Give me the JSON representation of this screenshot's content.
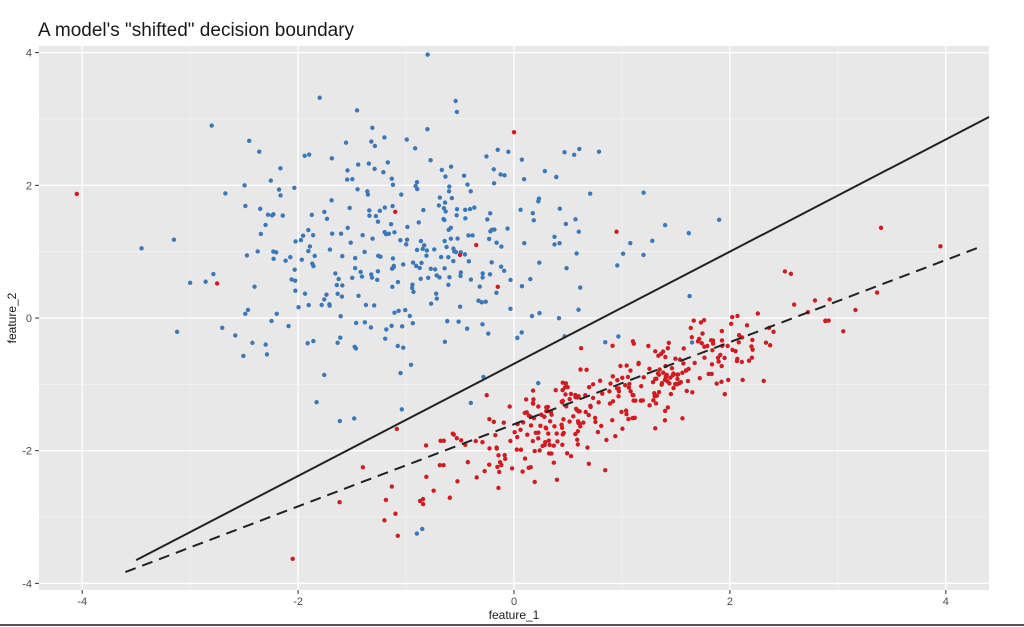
{
  "chart_data": {
    "type": "scatter",
    "title": "A model's \"shifted\" decision boundary",
    "xlabel": "feature_1",
    "ylabel": "feature_2",
    "xlim": [
      -4.4,
      4.4
    ],
    "ylim": [
      -4.1,
      4.1
    ],
    "x_ticks": [
      -4,
      -2,
      0,
      2,
      4
    ],
    "y_ticks": [
      -4,
      -2,
      0,
      2,
      4
    ],
    "x_tick_labels": [
      "-4",
      "-2",
      "0",
      "2",
      "4"
    ],
    "y_tick_labels": [
      "-4",
      "-2",
      "0",
      "2",
      "4"
    ],
    "grid": true,
    "legend": "none",
    "colors": {
      "panel": "#e8e8e8",
      "grid_major": "#ffffff",
      "grid_minor": "#f2f2f2",
      "blue": "#3a78b8",
      "red": "#d01c20",
      "line": "#222222"
    },
    "lines": [
      {
        "style": "solid",
        "x": [
          -3.5,
          4.4
        ],
        "y": [
          -3.65,
          3.03
        ]
      },
      {
        "style": "dashed",
        "x": [
          -3.6,
          4.3
        ],
        "y": [
          -3.83,
          1.06
        ]
      }
    ],
    "clusters": [
      {
        "color": "blue",
        "n": 330,
        "center": [
          -1.0,
          1.0
        ],
        "sd": [
          0.85,
          0.9
        ],
        "seed": 7
      },
      {
        "color": "red",
        "n": 340,
        "center": [
          0.9,
          -1.2
        ],
        "along": [
          0.8,
          0.6
        ],
        "sd_along": 1.05,
        "sd_across": 0.28,
        "seed": 11
      }
    ],
    "extra_points": {
      "blue": [
        [
          -3.45,
          1.05
        ],
        [
          -3.15,
          1.18
        ],
        [
          -0.8,
          3.97
        ],
        [
          -1.8,
          3.32
        ],
        [
          1.9,
          1.48
        ],
        [
          1.4,
          1.4
        ],
        [
          -0.4,
          -1.28
        ],
        [
          -0.85,
          -3.18
        ],
        [
          -0.9,
          -3.25
        ],
        [
          -2.8,
          2.9
        ],
        [
          -3.0,
          0.53
        ],
        [
          -2.3,
          -0.4
        ],
        [
          1.2,
          0.95
        ],
        [
          0.6,
          1.3
        ]
      ],
      "red": [
        [
          -4.05,
          1.87
        ],
        [
          -2.75,
          0.52
        ],
        [
          -2.05,
          -3.63
        ],
        [
          0.0,
          2.8
        ],
        [
          -0.35,
          1.1
        ],
        [
          -1.4,
          -2.25
        ],
        [
          -1.2,
          -3.05
        ],
        [
          3.05,
          -0.2
        ],
        [
          3.95,
          1.08
        ],
        [
          3.4,
          1.36
        ],
        [
          -1.1,
          1.6
        ],
        [
          0.95,
          1.3
        ],
        [
          -0.5,
          0.95
        ],
        [
          -0.15,
          0.47
        ]
      ]
    }
  }
}
